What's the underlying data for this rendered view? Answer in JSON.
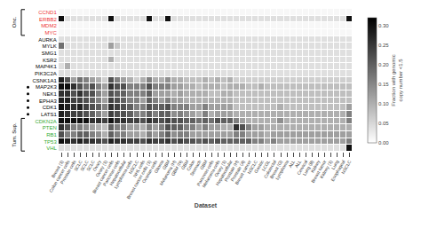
{
  "chart_data": {
    "type": "heatmap",
    "xlabel": "Dataset",
    "x": [
      "Breast (1)",
      "Colon cancer cells",
      "Prostate cells",
      "SCLC",
      "SCLC",
      "SCLC",
      "Ovary",
      "Ovary (1)",
      "Breast cancer cells",
      "Pancreas cells",
      "Hepatocellular",
      "Lymphoma cells",
      "NSCLC",
      "NHL cells",
      "Breast cancer cells (1)",
      "Ovarian cells",
      "Glioma",
      "GBM",
      "Melanoma (H)",
      "GBM (N)",
      "GBM",
      "Colon",
      "Stomach",
      "GBM",
      "Pancreas cells",
      "Melanoma cells",
      "Ovary (1)",
      "Hepatocellular",
      "Prostate (H)",
      "Prostate (A)",
      "Breast cancer",
      "NSCLC",
      "Gastric",
      "LCGL",
      "Colorectal",
      "Breast (G)",
      "Lymphoma",
      "ALL",
      "ALL",
      "Cervical",
      "Lung (B)",
      "Kidney",
      "Breast tumor",
      "Kidney (1)",
      "Lung",
      "Esophageal",
      "NSCLC"
    ],
    "y": [
      "CCND1",
      "ERBB2",
      "MDM2",
      "MYC",
      "AURKA",
      "MYLK",
      "SMG1",
      "KSR2",
      "MAP4K1",
      "PIK3C2A",
      "CSNK1A1",
      "MAP2K3",
      "NEK1",
      "EPHA3",
      "CDK1",
      "LATS1",
      "CDKN2A",
      "PTEN",
      "RB1",
      "TP53",
      "VHL"
    ],
    "y_label_colors": [
      "#ee3333",
      "#ee3333",
      "#ee3333",
      "#ee3333",
      "#000000",
      "#000000",
      "#000000",
      "#000000",
      "#000000",
      "#000000",
      "#000000",
      "#000000",
      "#000000",
      "#000000",
      "#000000",
      "#000000",
      "#33aa33",
      "#33aa33",
      "#33aa33",
      "#33aa33",
      "#33aa33"
    ],
    "marked_rows": [
      "MAP2K3",
      "NEK1",
      "EPHA3",
      "CDK1",
      "LATS1"
    ],
    "brackets": [
      {
        "label": "Onc.",
        "rows": [
          "CCND1",
          "ERBB2",
          "MDM2",
          "MYC"
        ]
      },
      {
        "label": "Tum. Sup.",
        "rows": [
          "CDKN2A",
          "PTEN",
          "RB1",
          "TP53",
          "VHL"
        ]
      }
    ],
    "grid": true,
    "colorbar": {
      "title": "Fraction with genomic\ncopy number <1.5",
      "range": [
        0.0,
        0.32
      ],
      "colorscale": [
        "#ffffff",
        "#000000"
      ],
      "ticks": [
        {
          "value": 0.0,
          "label": "0.00"
        },
        0.05,
        {
          "value": 0.1,
          "label": "0.10"
        },
        0.15,
        {
          "value": 0.2,
          "label": "0.20"
        },
        0.25,
        {
          "value": 0.3,
          "label": "0.30"
        }
      ]
    },
    "z": [
      [
        0.01,
        0.01,
        0.01,
        0.01,
        0.01,
        0.01,
        0.01,
        0.01,
        0.01,
        0.01,
        0.01,
        0.01,
        0.01,
        0.01,
        0.01,
        0.01,
        0.01,
        0.01,
        0.01,
        0.01,
        0.01,
        0.01,
        0.01,
        0.01,
        0.01,
        0.01,
        0.01,
        0.01,
        0.01,
        0.01,
        0.01,
        0.01,
        0.01,
        0.01,
        0.01,
        0.01,
        0.01,
        0.01,
        0.01,
        0.01,
        0.01,
        0.01,
        0.01,
        0.01,
        0.01,
        0.01,
        0.01
      ],
      [
        0.3,
        0.04,
        0.04,
        0.04,
        0.04,
        0.04,
        0.04,
        0.04,
        0.3,
        0.04,
        0.04,
        0.04,
        0.04,
        0.04,
        0.3,
        0.04,
        0.04,
        0.3,
        0.04,
        0.04,
        0.04,
        0.04,
        0.04,
        0.04,
        0.04,
        0.04,
        0.04,
        0.04,
        0.04,
        0.04,
        0.04,
        0.04,
        0.04,
        0.04,
        0.04,
        0.04,
        0.04,
        0.04,
        0.04,
        0.04,
        0.04,
        0.04,
        0.04,
        0.04,
        0.04,
        0.04,
        0.3
      ],
      [
        0.01,
        0.01,
        0.01,
        0.01,
        0.01,
        0.01,
        0.01,
        0.01,
        0.01,
        0.01,
        0.01,
        0.01,
        0.01,
        0.01,
        0.01,
        0.01,
        0.01,
        0.01,
        0.01,
        0.01,
        0.01,
        0.01,
        0.01,
        0.01,
        0.01,
        0.01,
        0.01,
        0.01,
        0.01,
        0.01,
        0.01,
        0.01,
        0.01,
        0.01,
        0.01,
        0.01,
        0.01,
        0.01,
        0.01,
        0.01,
        0.01,
        0.01,
        0.01,
        0.01,
        0.01,
        0.01,
        0.01
      ],
      [
        0.01,
        0.01,
        0.01,
        0.01,
        0.01,
        0.01,
        0.01,
        0.01,
        0.01,
        0.01,
        0.01,
        0.01,
        0.01,
        0.01,
        0.01,
        0.01,
        0.01,
        0.01,
        0.01,
        0.01,
        0.01,
        0.01,
        0.01,
        0.01,
        0.01,
        0.01,
        0.01,
        0.01,
        0.01,
        0.01,
        0.01,
        0.01,
        0.01,
        0.01,
        0.01,
        0.01,
        0.01,
        0.01,
        0.01,
        0.01,
        0.01,
        0.01,
        0.01,
        0.01,
        0.01,
        0.01,
        0.01
      ],
      [
        0.04,
        0.04,
        0.04,
        0.04,
        0.04,
        0.04,
        0.04,
        0.04,
        0.04,
        0.04,
        0.04,
        0.04,
        0.04,
        0.04,
        0.04,
        0.04,
        0.04,
        0.04,
        0.04,
        0.04,
        0.04,
        0.04,
        0.04,
        0.04,
        0.04,
        0.04,
        0.04,
        0.04,
        0.04,
        0.04,
        0.04,
        0.04,
        0.04,
        0.04,
        0.04,
        0.04,
        0.04,
        0.04,
        0.04,
        0.04,
        0.04,
        0.04,
        0.04,
        0.04,
        0.04,
        0.04,
        0.04
      ],
      [
        0.18,
        0.04,
        0.04,
        0.04,
        0.04,
        0.04,
        0.04,
        0.04,
        0.12,
        0.07,
        0.04,
        0.04,
        0.04,
        0.04,
        0.04,
        0.04,
        0.04,
        0.04,
        0.04,
        0.04,
        0.04,
        0.04,
        0.04,
        0.04,
        0.04,
        0.04,
        0.04,
        0.04,
        0.04,
        0.04,
        0.04,
        0.04,
        0.04,
        0.04,
        0.04,
        0.04,
        0.04,
        0.04,
        0.04,
        0.04,
        0.04,
        0.04,
        0.04,
        0.04,
        0.04,
        0.04,
        0.04
      ],
      [
        0.04,
        0.04,
        0.04,
        0.04,
        0.04,
        0.04,
        0.04,
        0.04,
        0.04,
        0.04,
        0.04,
        0.04,
        0.04,
        0.04,
        0.04,
        0.04,
        0.04,
        0.04,
        0.04,
        0.04,
        0.04,
        0.04,
        0.04,
        0.04,
        0.04,
        0.04,
        0.04,
        0.04,
        0.04,
        0.04,
        0.04,
        0.04,
        0.04,
        0.04,
        0.04,
        0.04,
        0.04,
        0.04,
        0.04,
        0.04,
        0.04,
        0.04,
        0.04,
        0.04,
        0.04,
        0.04,
        0.04
      ],
      [
        0.04,
        0.04,
        0.04,
        0.04,
        0.04,
        0.04,
        0.04,
        0.04,
        0.1,
        0.04,
        0.04,
        0.04,
        0.04,
        0.04,
        0.04,
        0.04,
        0.04,
        0.04,
        0.04,
        0.04,
        0.04,
        0.04,
        0.04,
        0.04,
        0.04,
        0.04,
        0.04,
        0.04,
        0.04,
        0.04,
        0.04,
        0.04,
        0.04,
        0.04,
        0.04,
        0.04,
        0.04,
        0.04,
        0.04,
        0.04,
        0.04,
        0.04,
        0.04,
        0.04,
        0.04,
        0.04,
        0.04
      ],
      [
        0.04,
        0.1,
        0.04,
        0.04,
        0.04,
        0.04,
        0.04,
        0.04,
        0.04,
        0.04,
        0.04,
        0.04,
        0.04,
        0.04,
        0.04,
        0.04,
        0.04,
        0.04,
        0.04,
        0.04,
        0.04,
        0.04,
        0.04,
        0.04,
        0.04,
        0.04,
        0.04,
        0.04,
        0.04,
        0.04,
        0.04,
        0.04,
        0.04,
        0.04,
        0.04,
        0.04,
        0.04,
        0.04,
        0.04,
        0.04,
        0.04,
        0.04,
        0.04,
        0.04,
        0.04,
        0.04,
        0.04
      ],
      [
        0.04,
        0.04,
        0.04,
        0.04,
        0.04,
        0.04,
        0.04,
        0.04,
        0.04,
        0.04,
        0.04,
        0.04,
        0.04,
        0.04,
        0.04,
        0.04,
        0.04,
        0.04,
        0.04,
        0.04,
        0.04,
        0.04,
        0.04,
        0.04,
        0.04,
        0.04,
        0.04,
        0.04,
        0.04,
        0.04,
        0.04,
        0.04,
        0.04,
        0.04,
        0.04,
        0.04,
        0.04,
        0.04,
        0.04,
        0.04,
        0.04,
        0.04,
        0.04,
        0.04,
        0.04,
        0.04,
        0.04
      ],
      [
        0.28,
        0.22,
        0.12,
        0.18,
        0.16,
        0.12,
        0.1,
        0.06,
        0.22,
        0.16,
        0.12,
        0.1,
        0.06,
        0.1,
        0.16,
        0.1,
        0.1,
        0.14,
        0.1,
        0.1,
        0.08,
        0.08,
        0.08,
        0.1,
        0.08,
        0.1,
        0.08,
        0.1,
        0.06,
        0.06,
        0.06,
        0.06,
        0.06,
        0.06,
        0.06,
        0.06,
        0.06,
        0.06,
        0.06,
        0.06,
        0.06,
        0.06,
        0.06,
        0.06,
        0.06,
        0.06,
        0.06
      ],
      [
        0.3,
        0.3,
        0.26,
        0.22,
        0.18,
        0.22,
        0.16,
        0.12,
        0.26,
        0.22,
        0.22,
        0.16,
        0.16,
        0.16,
        0.22,
        0.16,
        0.16,
        0.16,
        0.12,
        0.12,
        0.1,
        0.1,
        0.08,
        0.1,
        0.1,
        0.1,
        0.08,
        0.1,
        0.1,
        0.1,
        0.08,
        0.08,
        0.1,
        0.08,
        0.08,
        0.08,
        0.08,
        0.08,
        0.08,
        0.08,
        0.08,
        0.08,
        0.08,
        0.08,
        0.08,
        0.08,
        0.08
      ],
      [
        0.26,
        0.26,
        0.22,
        0.26,
        0.22,
        0.22,
        0.16,
        0.12,
        0.22,
        0.2,
        0.2,
        0.16,
        0.16,
        0.16,
        0.2,
        0.12,
        0.12,
        0.12,
        0.1,
        0.12,
        0.1,
        0.1,
        0.1,
        0.1,
        0.08,
        0.08,
        0.1,
        0.1,
        0.08,
        0.08,
        0.08,
        0.08,
        0.08,
        0.08,
        0.08,
        0.08,
        0.08,
        0.08,
        0.08,
        0.08,
        0.08,
        0.08,
        0.08,
        0.08,
        0.08,
        0.08,
        0.08
      ],
      [
        0.28,
        0.28,
        0.24,
        0.24,
        0.22,
        0.2,
        0.16,
        0.12,
        0.24,
        0.22,
        0.2,
        0.16,
        0.16,
        0.12,
        0.2,
        0.16,
        0.12,
        0.16,
        0.12,
        0.12,
        0.1,
        0.1,
        0.1,
        0.1,
        0.1,
        0.1,
        0.1,
        0.1,
        0.08,
        0.08,
        0.08,
        0.08,
        0.08,
        0.08,
        0.08,
        0.08,
        0.08,
        0.08,
        0.08,
        0.08,
        0.08,
        0.08,
        0.08,
        0.08,
        0.08,
        0.08,
        0.08
      ],
      [
        0.3,
        0.28,
        0.26,
        0.28,
        0.24,
        0.22,
        0.2,
        0.16,
        0.26,
        0.24,
        0.22,
        0.2,
        0.16,
        0.16,
        0.22,
        0.2,
        0.2,
        0.22,
        0.16,
        0.16,
        0.16,
        0.12,
        0.12,
        0.16,
        0.12,
        0.12,
        0.12,
        0.12,
        0.08,
        0.08,
        0.08,
        0.08,
        0.08,
        0.08,
        0.08,
        0.1,
        0.08,
        0.08,
        0.08,
        0.08,
        0.08,
        0.08,
        0.08,
        0.08,
        0.08,
        0.08,
        0.12
      ],
      [
        0.28,
        0.26,
        0.24,
        0.24,
        0.22,
        0.2,
        0.16,
        0.12,
        0.24,
        0.22,
        0.22,
        0.2,
        0.16,
        0.16,
        0.2,
        0.16,
        0.2,
        0.2,
        0.14,
        0.16,
        0.14,
        0.12,
        0.1,
        0.16,
        0.1,
        0.12,
        0.12,
        0.12,
        0.1,
        0.1,
        0.1,
        0.1,
        0.1,
        0.1,
        0.1,
        0.1,
        0.1,
        0.1,
        0.1,
        0.1,
        0.1,
        0.1,
        0.1,
        0.1,
        0.1,
        0.1,
        0.16
      ],
      [
        0.3,
        0.3,
        0.3,
        0.3,
        0.3,
        0.26,
        0.26,
        0.24,
        0.3,
        0.26,
        0.26,
        0.24,
        0.24,
        0.22,
        0.26,
        0.24,
        0.22,
        0.24,
        0.22,
        0.22,
        0.2,
        0.2,
        0.18,
        0.2,
        0.18,
        0.22,
        0.2,
        0.2,
        0.16,
        0.12,
        0.1,
        0.1,
        0.1,
        0.1,
        0.1,
        0.14,
        0.1,
        0.1,
        0.1,
        0.1,
        0.1,
        0.1,
        0.1,
        0.1,
        0.1,
        0.1,
        0.16
      ],
      [
        0.26,
        0.22,
        0.16,
        0.16,
        0.14,
        0.12,
        0.1,
        0.08,
        0.2,
        0.16,
        0.16,
        0.12,
        0.12,
        0.1,
        0.16,
        0.12,
        0.16,
        0.22,
        0.2,
        0.2,
        0.16,
        0.16,
        0.12,
        0.16,
        0.12,
        0.12,
        0.1,
        0.1,
        0.26,
        0.22,
        0.16,
        0.12,
        0.12,
        0.1,
        0.1,
        0.1,
        0.1,
        0.1,
        0.1,
        0.1,
        0.1,
        0.1,
        0.1,
        0.1,
        0.1,
        0.1,
        0.1
      ],
      [
        0.22,
        0.16,
        0.16,
        0.2,
        0.2,
        0.16,
        0.14,
        0.1,
        0.2,
        0.16,
        0.16,
        0.12,
        0.12,
        0.1,
        0.16,
        0.12,
        0.16,
        0.2,
        0.14,
        0.16,
        0.16,
        0.12,
        0.12,
        0.12,
        0.12,
        0.12,
        0.12,
        0.12,
        0.16,
        0.16,
        0.12,
        0.12,
        0.12,
        0.1,
        0.12,
        0.12,
        0.12,
        0.12,
        0.12,
        0.12,
        0.12,
        0.12,
        0.12,
        0.12,
        0.12,
        0.12,
        0.12
      ],
      [
        0.3,
        0.28,
        0.26,
        0.28,
        0.26,
        0.26,
        0.24,
        0.22,
        0.28,
        0.26,
        0.26,
        0.24,
        0.24,
        0.22,
        0.26,
        0.24,
        0.24,
        0.26,
        0.22,
        0.24,
        0.22,
        0.22,
        0.2,
        0.22,
        0.2,
        0.22,
        0.2,
        0.2,
        0.2,
        0.2,
        0.2,
        0.16,
        0.16,
        0.12,
        0.16,
        0.12,
        0.12,
        0.12,
        0.12,
        0.12,
        0.12,
        0.12,
        0.12,
        0.12,
        0.12,
        0.12,
        0.16
      ],
      [
        0.04,
        0.04,
        0.04,
        0.04,
        0.04,
        0.04,
        0.04,
        0.04,
        0.04,
        0.04,
        0.04,
        0.04,
        0.04,
        0.04,
        0.04,
        0.04,
        0.04,
        0.04,
        0.04,
        0.04,
        0.04,
        0.04,
        0.04,
        0.04,
        0.04,
        0.04,
        0.04,
        0.04,
        0.04,
        0.04,
        0.04,
        0.04,
        0.04,
        0.04,
        0.04,
        0.04,
        0.04,
        0.04,
        0.04,
        0.04,
        0.04,
        0.04,
        0.04,
        0.04,
        0.04,
        0.04,
        0.3
      ]
    ]
  }
}
